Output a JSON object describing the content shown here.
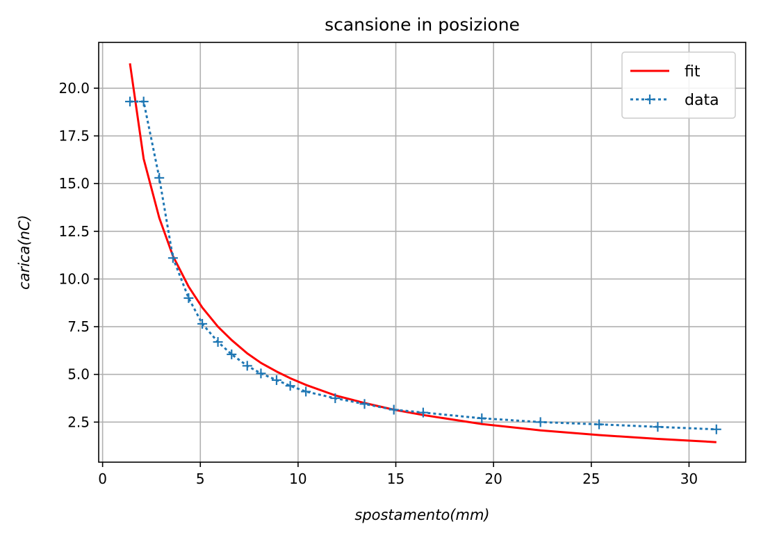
{
  "chart_data": {
    "type": "line",
    "title": "scansione in posizione",
    "xlabel": "spostamento(mm)",
    "ylabel": "carica(nC)",
    "xlim": [
      -0.2,
      32.9
    ],
    "ylim": [
      0.4,
      22.4
    ],
    "xticks": [
      0,
      5,
      10,
      15,
      20,
      25,
      30
    ],
    "xtick_labels": [
      "0",
      "5",
      "10",
      "15",
      "20",
      "25",
      "30"
    ],
    "yticks": [
      2.5,
      5.0,
      7.5,
      10.0,
      12.5,
      15.0,
      17.5,
      20.0
    ],
    "ytick_labels": [
      "2.5",
      "5.0",
      "7.5",
      "10.0",
      "12.5",
      "15.0",
      "17.5",
      "20.0"
    ],
    "grid": true,
    "legend_position": "top-right",
    "series": [
      {
        "name": "fit",
        "color": "#ff0000",
        "style": "solid",
        "marker": "none",
        "x": [
          1.4,
          2.1,
          2.9,
          3.6,
          4.4,
          5.1,
          5.9,
          6.6,
          7.4,
          8.1,
          8.9,
          9.6,
          10.4,
          11.9,
          13.4,
          14.9,
          16.4,
          19.4,
          22.4,
          25.4,
          28.4,
          31.4
        ],
        "y": [
          21.3,
          16.3,
          13.2,
          11.2,
          9.6,
          8.5,
          7.5,
          6.8,
          6.1,
          5.6,
          5.15,
          4.8,
          4.45,
          3.9,
          3.5,
          3.15,
          2.87,
          2.4,
          2.07,
          1.82,
          1.62,
          1.45
        ]
      },
      {
        "name": "data",
        "color": "#1f77b4",
        "style": "dotted",
        "marker": "plus",
        "x": [
          1.4,
          2.1,
          2.9,
          3.6,
          4.4,
          5.1,
          5.9,
          6.6,
          7.4,
          8.1,
          8.9,
          9.6,
          10.4,
          11.9,
          13.4,
          14.9,
          16.4,
          19.4,
          22.4,
          25.4,
          28.4,
          31.4
        ],
        "y": [
          19.3,
          19.3,
          15.3,
          11.1,
          9.0,
          7.65,
          6.7,
          6.05,
          5.45,
          5.05,
          4.7,
          4.4,
          4.1,
          3.75,
          3.45,
          3.15,
          3.0,
          2.7,
          2.5,
          2.38,
          2.25,
          2.12
        ]
      }
    ]
  }
}
